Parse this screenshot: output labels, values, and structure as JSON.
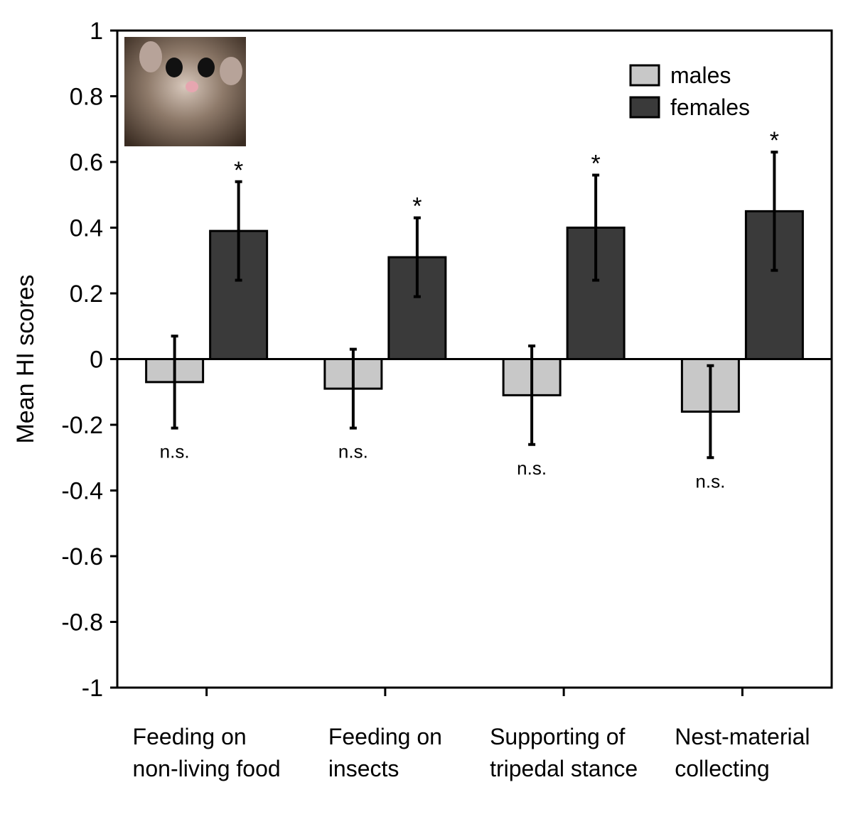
{
  "chart_data": {
    "type": "bar",
    "y_label": "Mean HI scores",
    "categories": [
      "Feeding on non-living food",
      "Feeding on insects",
      "Supporting of tripedal stance",
      "Nest-material collecting"
    ],
    "series": [
      {
        "name": "males",
        "color": "#c8c8c8",
        "values": [
          -0.07,
          -0.09,
          -0.11,
          -0.16
        ],
        "errors": [
          0.14,
          0.12,
          0.15,
          0.14
        ],
        "annotations": [
          "n.s.",
          "n.s.",
          "n.s.",
          "n.s."
        ]
      },
      {
        "name": "females",
        "color": "#3a3a3a",
        "values": [
          0.39,
          0.31,
          0.4,
          0.45
        ],
        "errors": [
          0.15,
          0.12,
          0.16,
          0.18
        ],
        "annotations": [
          "*",
          "*",
          "*",
          "*"
        ]
      }
    ],
    "ylim": [
      -1,
      1
    ],
    "yticks": [
      -1,
      -0.8,
      -0.6,
      -0.4,
      -0.2,
      0,
      0.2,
      0.4,
      0.6,
      0.8,
      1
    ],
    "legend": "upper-right"
  }
}
